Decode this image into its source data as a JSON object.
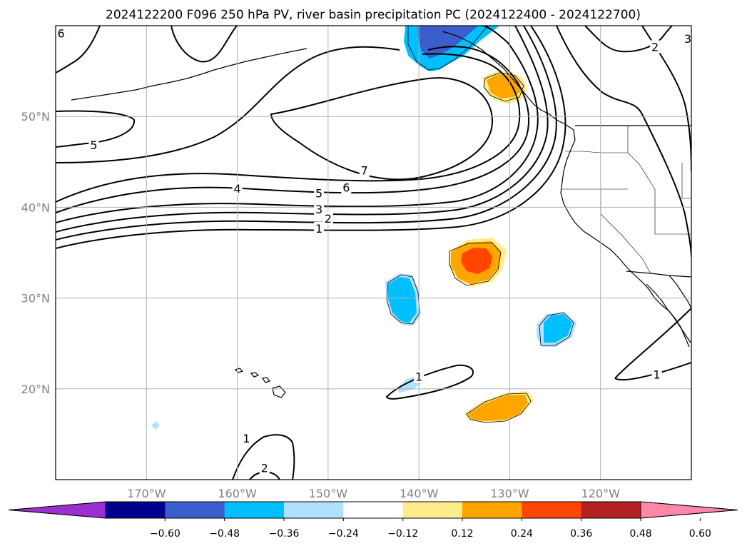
{
  "chart_data": {
    "type": "contour-map",
    "title": "2024122200 F096 250 hPa PV, river basin precipitation PC (2024122400 - 2024122700)",
    "extent": {
      "lon": [
        -180,
        -110
      ],
      "lat": [
        10,
        60
      ]
    },
    "lon_ticks": [
      {
        "value": -170,
        "label": "170°W"
      },
      {
        "value": -160,
        "label": "160°W"
      },
      {
        "value": -150,
        "label": "150°W"
      },
      {
        "value": -140,
        "label": "140°W"
      },
      {
        "value": -130,
        "label": "130°W"
      },
      {
        "value": -120,
        "label": "120°W"
      }
    ],
    "lat_ticks": [
      {
        "value": 20,
        "label": "20°N"
      },
      {
        "value": 30,
        "label": "30°N"
      },
      {
        "value": 40,
        "label": "40°N"
      },
      {
        "value": 50,
        "label": "50°N"
      }
    ],
    "grid": true,
    "colorbar": {
      "levels": [
        -0.72,
        -0.6,
        -0.48,
        -0.36,
        -0.24,
        -0.12,
        0.12,
        0.24,
        0.36,
        0.48,
        0.6,
        0.72
      ],
      "colors": [
        "#9b30d0",
        "#00008b",
        "#3a5fcd",
        "#00bfff",
        "#b0e2ff",
        "#ffffff",
        "#ffec8b",
        "#ffa500",
        "#ff4500",
        "#b22222",
        "#ff88aa"
      ],
      "extend": "both",
      "tick_labels": [
        "−0.60",
        "−0.48",
        "−0.36",
        "−0.24",
        "−0.12",
        "0.12",
        "0.24",
        "0.36",
        "0.48",
        "0.60"
      ]
    },
    "contour_labels": [
      {
        "text": "5",
        "lon": -175.8,
        "lat": 46.8
      },
      {
        "text": "4",
        "lon": -160.0,
        "lat": 42.0
      },
      {
        "text": "5",
        "lon": -151.0,
        "lat": 41.5
      },
      {
        "text": "6",
        "lon": -148.0,
        "lat": 42.1
      },
      {
        "text": "7",
        "lon": -146.0,
        "lat": 44.0
      },
      {
        "text": "3",
        "lon": -151.0,
        "lat": 39.7
      },
      {
        "text": "2",
        "lon": -150.0,
        "lat": 38.7
      },
      {
        "text": "1",
        "lon": -151.0,
        "lat": 37.6
      },
      {
        "text": "1",
        "lon": -140.0,
        "lat": 21.3
      },
      {
        "text": "1",
        "lon": -113.8,
        "lat": 21.5
      },
      {
        "text": "1",
        "lon": -159.0,
        "lat": 14.5
      },
      {
        "text": "2",
        "lon": -157.0,
        "lat": 11.2
      },
      {
        "text": "2",
        "lon": -114.0,
        "lat": 57.6
      },
      {
        "text": "3",
        "lon": -110.4,
        "lat": 58.5
      },
      {
        "text": "6",
        "lon": -179.4,
        "lat": 59.1
      }
    ]
  }
}
